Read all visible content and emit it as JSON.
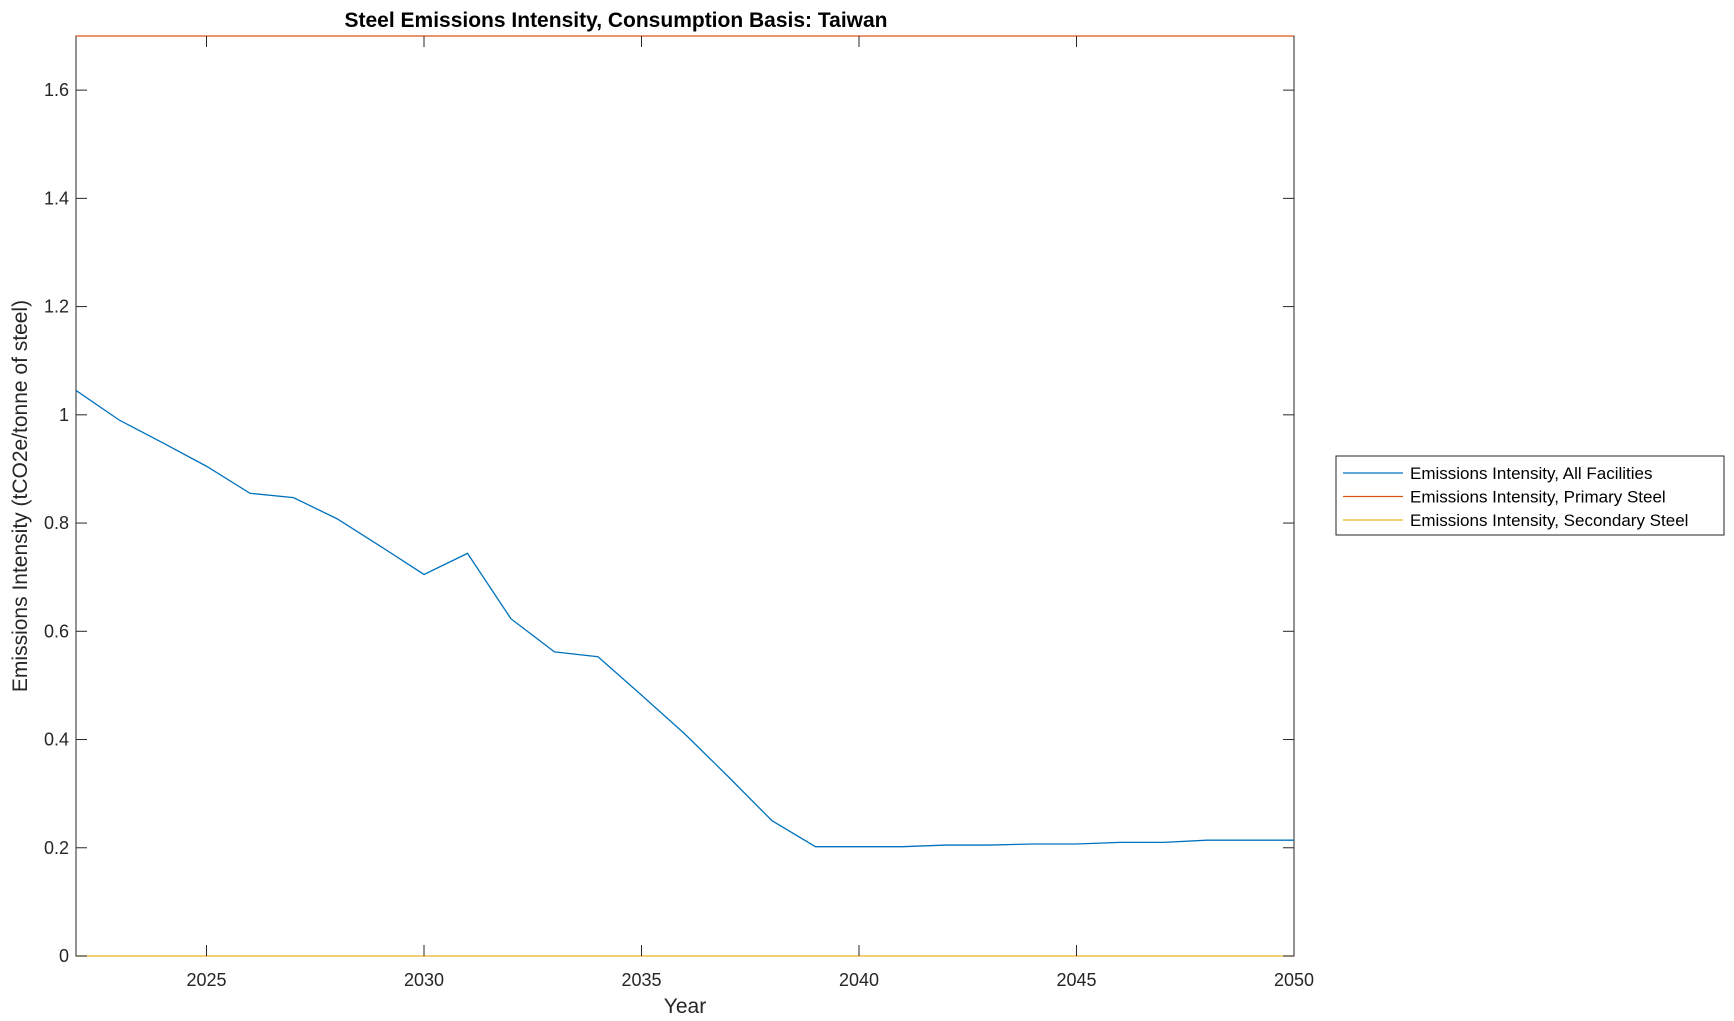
{
  "chart_data": {
    "type": "line",
    "title": "Steel Emissions Intensity, Consumption Basis: Taiwan",
    "xlabel": "Year",
    "ylabel": "Emissions Intensity (tCO2e/tonne of steel)",
    "xlim": [
      2022,
      2050
    ],
    "ylim": [
      0,
      1.7
    ],
    "x_ticks": [
      2025,
      2030,
      2035,
      2040,
      2045,
      2050
    ],
    "x_tick_labels": [
      "2025",
      "2030",
      "2035",
      "2040",
      "2045",
      "2050"
    ],
    "y_ticks": [
      0,
      0.2,
      0.4,
      0.6,
      0.8,
      1,
      1.2,
      1.4,
      1.6
    ],
    "y_tick_labels": [
      "0",
      "0.2",
      "0.4",
      "0.6",
      "0.8",
      "1",
      "1.2",
      "1.4",
      "1.6"
    ],
    "grid": false,
    "legend_position": "outside-right",
    "x": [
      2022,
      2023,
      2024,
      2025,
      2026,
      2027,
      2028,
      2029,
      2030,
      2031,
      2032,
      2033,
      2034,
      2035,
      2036,
      2037,
      2038,
      2039,
      2040,
      2041,
      2042,
      2043,
      2044,
      2045,
      2046,
      2047,
      2048,
      2049,
      2050
    ],
    "series": [
      {
        "name": "Emissions Intensity, All Facilities",
        "color": "#0072BD",
        "values": [
          1.045,
          0.99,
          0.948,
          0.905,
          0.855,
          0.847,
          0.808,
          0.757,
          0.705,
          0.744,
          0.623,
          0.562,
          0.553,
          0.482,
          0.41,
          0.331,
          0.25,
          0.202,
          0.202,
          0.202,
          0.205,
          0.205,
          0.207,
          0.207,
          0.21,
          0.21,
          0.214,
          0.214,
          0.214
        ]
      },
      {
        "name": "Emissions Intensity, Primary Steel",
        "color": "#D95319",
        "values": [
          1.7,
          1.7,
          1.7,
          1.7,
          1.7,
          1.7,
          1.7,
          1.7,
          1.7,
          1.7,
          1.7,
          1.7,
          1.7,
          1.7,
          1.7,
          1.7,
          1.7,
          1.7,
          1.7,
          1.7,
          1.7,
          1.7,
          1.7,
          1.7,
          1.7,
          1.7,
          1.7,
          1.7,
          1.7
        ]
      },
      {
        "name": "Emissions Intensity, Secondary Steel",
        "color": "#EDB120",
        "values": [
          0,
          0,
          0,
          0,
          0,
          0,
          0,
          0,
          0,
          0,
          0,
          0,
          0,
          0,
          0,
          0,
          0,
          0,
          0,
          0,
          0,
          0,
          0,
          0,
          0,
          0,
          0,
          0,
          0
        ]
      }
    ]
  }
}
